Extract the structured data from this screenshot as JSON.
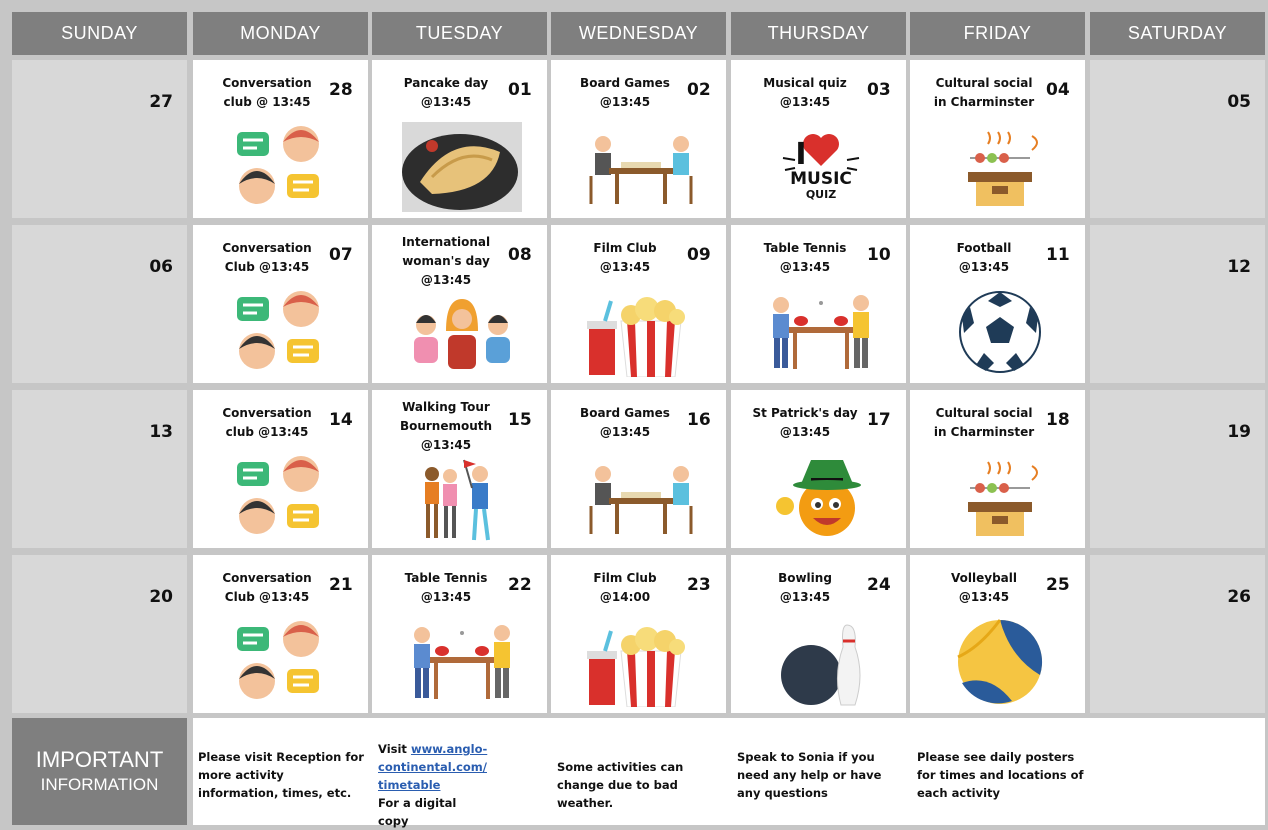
{
  "header": {
    "days": [
      "SUNDAY",
      "MONDAY",
      "TUESDAY",
      "WEDNESDAY",
      "THURSDAY",
      "FRIDAY",
      "SATURDAY"
    ]
  },
  "weeks": [
    {
      "cells": [
        {
          "date": "27"
        },
        {
          "title": [
            "Conversation",
            "club @ 13:45"
          ],
          "date": "28"
        },
        {
          "title": [
            "Pancake day",
            "@13:45"
          ],
          "date": "01"
        },
        {
          "title": [
            "Board Games",
            "@13:45"
          ],
          "date": "02"
        },
        {
          "title": [
            "Musical quiz",
            "@13:45"
          ],
          "date": "03",
          "icon_text": [
            "I",
            "MUSIC",
            "QUIZ"
          ]
        },
        {
          "title": [
            "Cultural social",
            "in Charminster"
          ],
          "date": "04"
        },
        {
          "date": "05"
        }
      ]
    },
    {
      "cells": [
        {
          "date": "06"
        },
        {
          "title": [
            "Conversation",
            "Club @13:45"
          ],
          "date": "07"
        },
        {
          "title": [
            "International",
            "woman's day",
            "@13:45"
          ],
          "date": "08"
        },
        {
          "title": [
            "Film Club",
            "@13:45"
          ],
          "date": "09"
        },
        {
          "title": [
            "Table Tennis",
            "@13:45"
          ],
          "date": "10"
        },
        {
          "title": [
            "Football",
            "@13:45"
          ],
          "date": "11"
        },
        {
          "date": "12"
        }
      ]
    },
    {
      "cells": [
        {
          "date": "13"
        },
        {
          "title": [
            "Conversation",
            "club  @13:45"
          ],
          "date": "14"
        },
        {
          "title": [
            "Walking Tour",
            "Bournemouth",
            "@13:45"
          ],
          "date": "15"
        },
        {
          "title": [
            "Board Games",
            "@13:45"
          ],
          "date": "16"
        },
        {
          "title": [
            "St Patrick's day",
            "@13:45"
          ],
          "date": "17"
        },
        {
          "title": [
            "Cultural social",
            "in Charminster"
          ],
          "date": "18"
        },
        {
          "date": "19"
        }
      ]
    },
    {
      "cells": [
        {
          "date": "20"
        },
        {
          "title": [
            "Conversation",
            "Club @13:45"
          ],
          "date": "21"
        },
        {
          "title": [
            "Table Tennis",
            "@13:45"
          ],
          "date": "22"
        },
        {
          "title": [
            "Film Club",
            "@14:00"
          ],
          "date": "23"
        },
        {
          "title": [
            "Bowling",
            "@13:45"
          ],
          "date": "24"
        },
        {
          "title": [
            "Volleyball",
            "@13:45"
          ],
          "date": "25"
        },
        {
          "date": "26"
        }
      ]
    }
  ],
  "info": {
    "title": [
      "IMPORTANT",
      "INFORMATION"
    ],
    "notes": [
      {
        "text": "Please visit Reception for more activity information, times, etc."
      },
      {
        "before": "Visit",
        "link": "www.anglo-continental.com/timetable",
        "after": "For a digital copy"
      },
      {
        "text": "Some activities can change due to bad weather."
      },
      {
        "text": "Speak to Sonia if you need any help or have any questions"
      },
      {
        "text": "Please see daily posters for times and locations of each activity"
      }
    ]
  }
}
